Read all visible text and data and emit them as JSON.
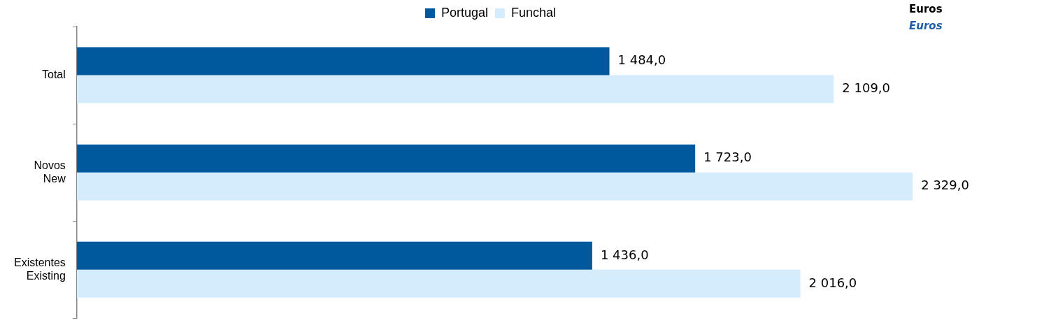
{
  "chart_data": {
    "type": "bar",
    "orientation": "horizontal",
    "categories": [
      "Total",
      "Novos\nNew",
      "Existentes\nExisting"
    ],
    "series": [
      {
        "name": "Portugal",
        "color": "#00599d",
        "values": [
          1484,
          1723,
          1436
        ],
        "value_labels": [
          "1 484,0",
          "1 723,0",
          "1 436,0"
        ]
      },
      {
        "name": "Funchal",
        "color": "#d4ecfc",
        "values": [
          2109,
          2329,
          2016
        ],
        "value_labels": [
          "2 109,0",
          "2 329,0",
          "2 016,0"
        ]
      }
    ],
    "tick_labels": "y",
    "grid": false,
    "legend": "top",
    "annotations": [
      "Euros",
      "Euros"
    ]
  }
}
